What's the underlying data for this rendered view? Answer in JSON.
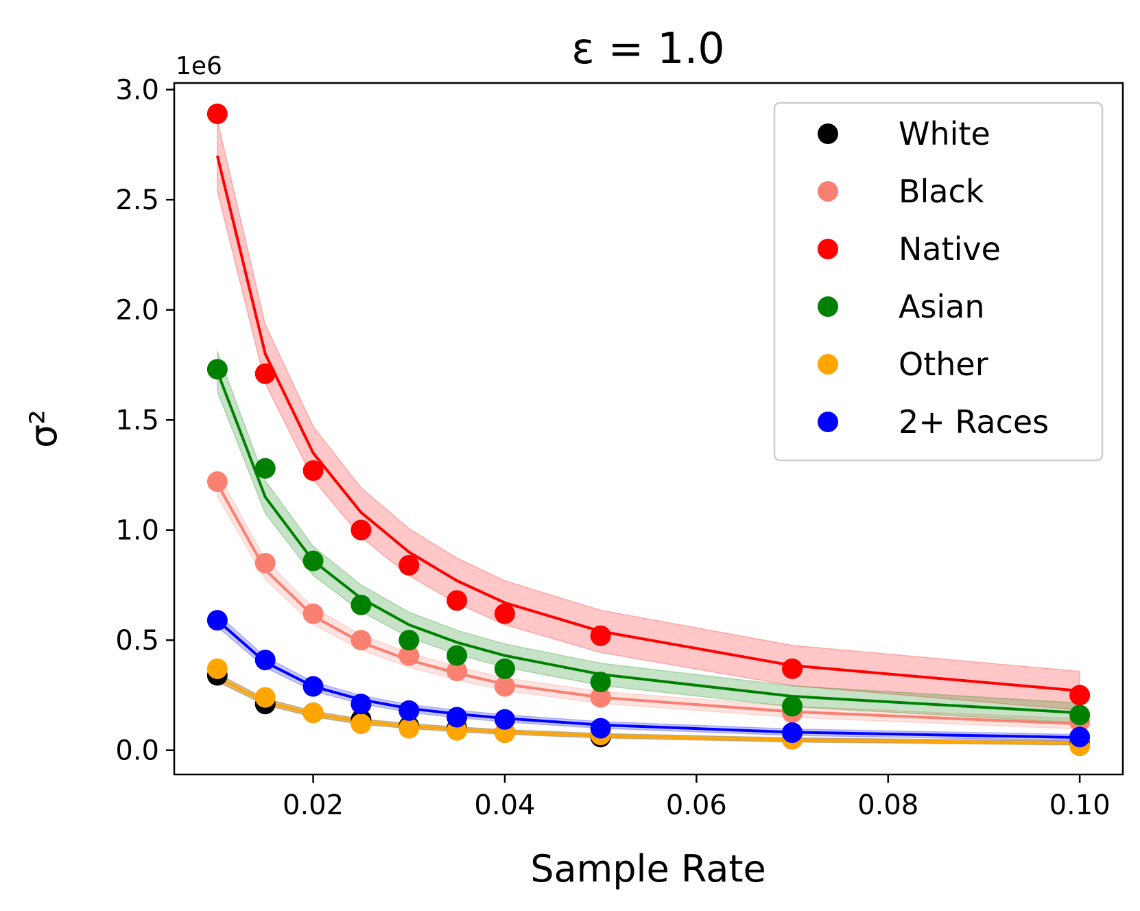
{
  "chart_data": {
    "type": "scatter",
    "title": "ε = 1.0",
    "xlabel": "Sample Rate",
    "ylabel": "σ²",
    "y_scale_label": "1e6",
    "xlim": [
      0.0055,
      0.1045
    ],
    "ylim": [
      -0.11,
      3.03
    ],
    "x_ticks": [
      0.02,
      0.04,
      0.06,
      0.08,
      0.1
    ],
    "x_tick_labels": [
      "0.02",
      "0.04",
      "0.06",
      "0.08",
      "0.10"
    ],
    "y_ticks": [
      0.0,
      0.5,
      1.0,
      1.5,
      2.0,
      2.5,
      3.0
    ],
    "y_tick_labels": [
      "0.0",
      "0.5",
      "1.0",
      "1.5",
      "2.0",
      "2.5",
      "3.0"
    ],
    "legend_position": "top-right",
    "x": [
      0.01,
      0.015,
      0.02,
      0.025,
      0.03,
      0.035,
      0.04,
      0.05,
      0.07,
      0.1
    ],
    "series": [
      {
        "name": "White",
        "color": "#000000",
        "points": [
          0.34,
          0.21,
          0.17,
          0.14,
          0.11,
          0.1,
          0.08,
          0.06,
          0.05,
          0.03
        ],
        "fit": [
          0.33,
          0.22,
          0.165,
          0.13,
          0.11,
          0.095,
          0.083,
          0.066,
          0.047,
          0.033
        ],
        "band": 0.008
      },
      {
        "name": "Black",
        "color": "#fa8072",
        "points": [
          1.22,
          0.85,
          0.62,
          0.5,
          0.43,
          0.36,
          0.29,
          0.24,
          0.17,
          0.13
        ],
        "fit": [
          1.21,
          0.82,
          0.61,
          0.49,
          0.41,
          0.35,
          0.3,
          0.24,
          0.175,
          0.12
        ],
        "band": 0.02
      },
      {
        "name": "Native",
        "color": "#ff0000",
        "points": [
          2.89,
          1.71,
          1.27,
          1.0,
          0.84,
          0.68,
          0.62,
          0.52,
          0.37,
          0.25
        ],
        "fit": [
          2.7,
          1.8,
          1.35,
          1.08,
          0.9,
          0.77,
          0.67,
          0.54,
          0.385,
          0.27
        ],
        "band": 0.08
      },
      {
        "name": "Asian",
        "color": "#008000",
        "points": [
          1.73,
          1.28,
          0.86,
          0.66,
          0.5,
          0.43,
          0.37,
          0.31,
          0.2,
          0.16
        ],
        "fit": [
          1.72,
          1.15,
          0.86,
          0.69,
          0.57,
          0.49,
          0.43,
          0.345,
          0.245,
          0.17
        ],
        "band": 0.04
      },
      {
        "name": "Other",
        "color": "#ffa500",
        "points": [
          0.37,
          0.24,
          0.17,
          0.12,
          0.1,
          0.09,
          0.08,
          0.07,
          0.05,
          0.02
        ],
        "fit": [
          0.33,
          0.22,
          0.165,
          0.13,
          0.11,
          0.095,
          0.083,
          0.066,
          0.047,
          0.033
        ],
        "band": 0.008
      },
      {
        "name": "2+ Races",
        "color": "#0000ff",
        "points": [
          0.59,
          0.41,
          0.29,
          0.21,
          0.18,
          0.15,
          0.14,
          0.1,
          0.08,
          0.06
        ],
        "fit": [
          0.59,
          0.4,
          0.29,
          0.23,
          0.19,
          0.165,
          0.145,
          0.115,
          0.082,
          0.058
        ],
        "band": 0.012
      }
    ]
  }
}
